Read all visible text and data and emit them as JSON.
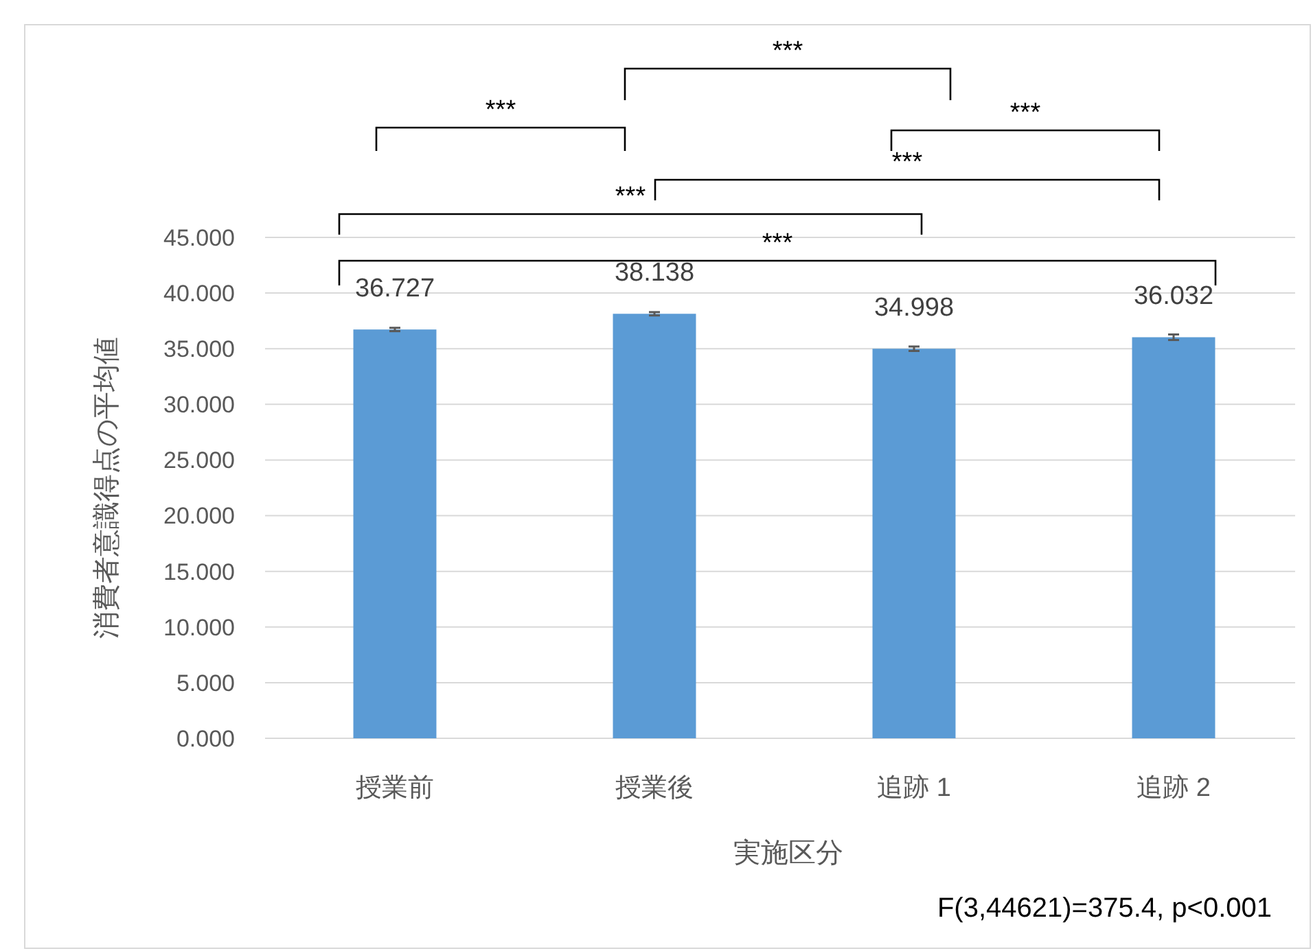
{
  "chart_data": {
    "type": "bar",
    "xlabel": "実施区分",
    "ylabel": "消費者意識得点の平均値",
    "categories": [
      "授業前",
      "授業後",
      "追跡 1",
      "追跡 2"
    ],
    "values": [
      36.727,
      38.138,
      34.998,
      36.032
    ],
    "color": "#5b9bd5",
    "errors": [
      0.15,
      0.15,
      0.2,
      0.25
    ],
    "data_labels": true,
    "ylim": [
      0,
      45
    ],
    "yticks": [
      {
        "value": 0,
        "label": "0.000"
      },
      {
        "value": 5,
        "label": "5.000"
      },
      {
        "value": 10,
        "label": "10.000"
      },
      {
        "value": 15,
        "label": "15.000"
      },
      {
        "value": 20,
        "label": "20.000"
      },
      {
        "value": 25,
        "label": "25.000"
      },
      {
        "value": 30,
        "label": "30.000"
      },
      {
        "value": 35,
        "label": "35.000"
      },
      {
        "value": 40,
        "label": "40.000"
      },
      {
        "value": 45,
        "label": "45.000"
      }
    ],
    "grid": "y",
    "annotations": [
      "***",
      "***",
      "***",
      "***",
      "***",
      "***",
      "F(3,44621)=375.4, p<0.001"
    ]
  }
}
